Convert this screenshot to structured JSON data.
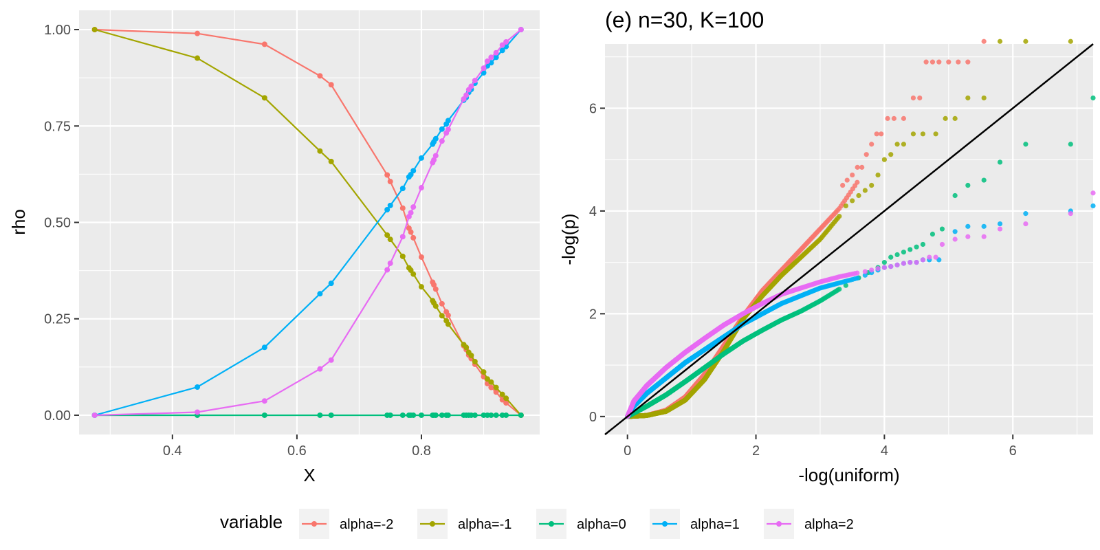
{
  "colors": {
    "alpha=-2": "#F8766D",
    "alpha=-1": "#A3A500",
    "alpha=0": "#00BF7D",
    "alpha=1": "#00B0F6",
    "alpha=2": "#E76BF3",
    "reference_line": "#000000"
  },
  "legend": {
    "title": "variable",
    "entries": [
      "alpha=-2",
      "alpha=-1",
      "alpha=0",
      "alpha=1",
      "alpha=2"
    ]
  },
  "chart_data": [
    {
      "type": "line",
      "title": "",
      "xlabel": "X",
      "ylabel": "rho",
      "xlim": [
        0.25,
        0.99
      ],
      "ylim": [
        -0.05,
        1.05
      ],
      "x_ticks": [
        0.4,
        0.6,
        0.8
      ],
      "x_tick_labels": [
        "0.4",
        "0.6",
        "0.8"
      ],
      "y_ticks": [
        0,
        0.25,
        0.5,
        0.75,
        1.0
      ],
      "y_tick_labels": [
        "0.00",
        "0.25",
        "0.50",
        "0.75",
        "1.00"
      ],
      "grid": true,
      "series": [
        {
          "name": "alpha=-2",
          "x": [
            0.275,
            0.44,
            0.548,
            0.637,
            0.655,
            0.745,
            0.75,
            0.77,
            0.78,
            0.783,
            0.787,
            0.8,
            0.818,
            0.82,
            0.823,
            0.833,
            0.84,
            0.843,
            0.868,
            0.872,
            0.876,
            0.88,
            0.886,
            0.9,
            0.906,
            0.912,
            0.92,
            0.93,
            0.936,
            0.96
          ],
          "y": [
            1.0,
            0.99,
            0.962,
            0.88,
            0.857,
            0.623,
            0.606,
            0.537,
            0.485,
            0.475,
            0.46,
            0.41,
            0.345,
            0.338,
            0.327,
            0.289,
            0.268,
            0.259,
            0.18,
            0.17,
            0.156,
            0.147,
            0.132,
            0.1,
            0.082,
            0.072,
            0.06,
            0.04,
            0.032,
            0.0
          ]
        },
        {
          "name": "alpha=-1",
          "x": [
            0.275,
            0.44,
            0.548,
            0.637,
            0.655,
            0.745,
            0.75,
            0.77,
            0.78,
            0.783,
            0.787,
            0.8,
            0.818,
            0.82,
            0.823,
            0.833,
            0.84,
            0.843,
            0.868,
            0.872,
            0.876,
            0.88,
            0.886,
            0.9,
            0.906,
            0.912,
            0.92,
            0.93,
            0.936,
            0.96
          ],
          "y": [
            1.0,
            0.926,
            0.823,
            0.685,
            0.658,
            0.467,
            0.456,
            0.412,
            0.382,
            0.376,
            0.366,
            0.333,
            0.297,
            0.291,
            0.283,
            0.258,
            0.245,
            0.236,
            0.183,
            0.176,
            0.163,
            0.155,
            0.139,
            0.112,
            0.094,
            0.086,
            0.072,
            0.054,
            0.044,
            0.0
          ]
        },
        {
          "name": "alpha=0",
          "x": [
            0.275,
            0.44,
            0.548,
            0.637,
            0.655,
            0.745,
            0.75,
            0.77,
            0.78,
            0.783,
            0.787,
            0.8,
            0.818,
            0.82,
            0.823,
            0.833,
            0.84,
            0.843,
            0.868,
            0.872,
            0.876,
            0.88,
            0.886,
            0.9,
            0.906,
            0.912,
            0.92,
            0.93,
            0.936,
            0.96
          ],
          "y": [
            0,
            0,
            0,
            0,
            0,
            0,
            0,
            0,
            0,
            0,
            0,
            0,
            0,
            0,
            0,
            0,
            0,
            0,
            0,
            0,
            0,
            0,
            0,
            0,
            0,
            0,
            0,
            0,
            0,
            0
          ]
        },
        {
          "name": "alpha=1",
          "x": [
            0.275,
            0.44,
            0.548,
            0.637,
            0.655,
            0.745,
            0.75,
            0.77,
            0.78,
            0.783,
            0.787,
            0.8,
            0.818,
            0.82,
            0.823,
            0.833,
            0.84,
            0.843,
            0.868,
            0.872,
            0.876,
            0.88,
            0.886,
            0.9,
            0.906,
            0.912,
            0.92,
            0.93,
            0.936,
            0.96
          ],
          "y": [
            0.0,
            0.073,
            0.176,
            0.315,
            0.342,
            0.533,
            0.544,
            0.588,
            0.618,
            0.624,
            0.634,
            0.667,
            0.703,
            0.709,
            0.717,
            0.742,
            0.755,
            0.764,
            0.817,
            0.824,
            0.837,
            0.845,
            0.861,
            0.888,
            0.906,
            0.914,
            0.928,
            0.946,
            0.956,
            1.0
          ]
        },
        {
          "name": "alpha=2",
          "x": [
            0.275,
            0.44,
            0.548,
            0.637,
            0.655,
            0.745,
            0.75,
            0.77,
            0.78,
            0.783,
            0.787,
            0.8,
            0.818,
            0.82,
            0.823,
            0.833,
            0.84,
            0.843,
            0.868,
            0.872,
            0.876,
            0.88,
            0.886,
            0.9,
            0.906,
            0.912,
            0.92,
            0.93,
            0.936,
            0.96
          ],
          "y": [
            0.0,
            0.008,
            0.037,
            0.12,
            0.143,
            0.377,
            0.394,
            0.463,
            0.515,
            0.525,
            0.54,
            0.59,
            0.655,
            0.662,
            0.673,
            0.711,
            0.732,
            0.741,
            0.82,
            0.83,
            0.844,
            0.853,
            0.868,
            0.9,
            0.918,
            0.928,
            0.94,
            0.96,
            0.968,
            1.0
          ]
        }
      ]
    },
    {
      "type": "scatter",
      "title": "(e) n=30, K=100",
      "xlabel": "-log(uniform)",
      "ylabel": "-log(p)",
      "xlim": [
        -0.35,
        7.25
      ],
      "ylim": [
        -0.35,
        7.25
      ],
      "x_ticks": [
        0,
        2,
        4,
        6
      ],
      "x_tick_labels": [
        "0",
        "2",
        "4",
        "6"
      ],
      "y_ticks": [
        0,
        2,
        4,
        6
      ],
      "y_tick_labels": [
        "0",
        "2",
        "4",
        "6"
      ],
      "grid": true,
      "reference_line": {
        "intercept": 0,
        "slope": 1
      },
      "n_points": 1000,
      "series": [
        {
          "name": "alpha=-2",
          "curve_x": [
            0,
            0.3,
            0.6,
            0.9,
            1.2,
            1.5,
            1.8,
            2.1,
            2.4,
            2.7,
            3.0,
            3.3,
            3.6
          ],
          "curve_y": [
            0,
            0.02,
            0.12,
            0.38,
            0.82,
            1.38,
            1.95,
            2.45,
            2.85,
            3.25,
            3.65,
            4.05,
            4.6
          ],
          "tail_x": [
            3.35,
            3.42,
            3.5,
            3.58,
            3.65,
            3.72,
            3.8,
            3.88,
            3.95,
            4.05,
            4.15,
            4.3,
            4.45,
            4.55,
            4.65,
            4.75,
            4.85,
            5.0,
            5.15,
            5.3,
            5.55
          ],
          "tail_y": [
            4.5,
            4.6,
            4.7,
            4.85,
            4.85,
            5.1,
            5.3,
            5.5,
            5.5,
            5.8,
            5.8,
            5.8,
            6.2,
            6.2,
            6.9,
            6.9,
            6.9,
            6.9,
            6.9,
            6.9,
            7.3
          ]
        },
        {
          "name": "alpha=-1",
          "curve_x": [
            0,
            0.3,
            0.6,
            0.9,
            1.2,
            1.5,
            1.8,
            2.1,
            2.4,
            2.7,
            3.0,
            3.3
          ],
          "curve_y": [
            0,
            0.02,
            0.1,
            0.32,
            0.72,
            1.28,
            1.9,
            2.35,
            2.75,
            3.1,
            3.45,
            3.9
          ],
          "tail_x": [
            3.4,
            3.5,
            3.6,
            3.7,
            3.8,
            3.9,
            4.0,
            4.1,
            4.2,
            4.3,
            4.45,
            4.6,
            4.8,
            4.95,
            5.1,
            5.3,
            5.55,
            5.8,
            6.2,
            6.9
          ],
          "tail_y": [
            4.1,
            4.2,
            4.3,
            4.4,
            4.5,
            4.7,
            5.0,
            5.1,
            5.3,
            5.3,
            5.5,
            5.5,
            5.5,
            5.8,
            5.8,
            6.2,
            6.2,
            7.3,
            7.3,
            7.3
          ]
        },
        {
          "name": "alpha=0",
          "curve_x": [
            0,
            0.3,
            0.6,
            0.9,
            1.2,
            1.5,
            1.8,
            2.1,
            2.4,
            2.7,
            3.0,
            3.3
          ],
          "curve_y": [
            0,
            0.2,
            0.42,
            0.68,
            0.95,
            1.22,
            1.47,
            1.68,
            1.88,
            2.05,
            2.25,
            2.48
          ],
          "tail_x": [
            3.4,
            3.6,
            3.75,
            3.9,
            4.0,
            4.1,
            4.2,
            4.3,
            4.4,
            4.5,
            4.6,
            4.75,
            4.9,
            5.1,
            5.3,
            5.55,
            5.8,
            6.2,
            6.9,
            7.25
          ],
          "tail_y": [
            2.55,
            2.7,
            2.8,
            2.9,
            3.0,
            3.1,
            3.15,
            3.2,
            3.25,
            3.3,
            3.35,
            3.55,
            3.65,
            4.3,
            4.5,
            4.6,
            4.95,
            5.3,
            5.3,
            6.2
          ]
        },
        {
          "name": "alpha=1",
          "curve_x": [
            0,
            0.1,
            0.3,
            0.6,
            0.9,
            1.2,
            1.5,
            1.8,
            2.1,
            2.4,
            2.7,
            3.0,
            3.3,
            3.6
          ],
          "curve_y": [
            0,
            0.2,
            0.45,
            0.75,
            1.05,
            1.3,
            1.55,
            1.8,
            2.0,
            2.2,
            2.35,
            2.5,
            2.6,
            2.7
          ],
          "tail_x": [
            3.7,
            3.8,
            3.9,
            4.0,
            4.1,
            4.2,
            4.3,
            4.4,
            4.5,
            4.6,
            4.7,
            4.85,
            5.1,
            5.3,
            5.55,
            5.8,
            6.2,
            6.9,
            7.25
          ],
          "tail_y": [
            2.75,
            2.8,
            2.85,
            2.9,
            2.92,
            2.95,
            2.98,
            3.0,
            3.0,
            3.05,
            3.05,
            3.05,
            3.6,
            3.7,
            3.7,
            3.75,
            3.95,
            4.0,
            4.1
          ]
        },
        {
          "name": "alpha=2",
          "curve_x": [
            0,
            0.1,
            0.3,
            0.6,
            0.9,
            1.2,
            1.5,
            1.8,
            2.1,
            2.4,
            2.7,
            3.0,
            3.3,
            3.6
          ],
          "curve_y": [
            0,
            0.3,
            0.6,
            0.95,
            1.25,
            1.52,
            1.78,
            2.0,
            2.2,
            2.38,
            2.5,
            2.62,
            2.72,
            2.8
          ],
          "tail_x": [
            3.7,
            3.8,
            3.9,
            4.0,
            4.1,
            4.2,
            4.3,
            4.4,
            4.5,
            4.6,
            4.7,
            4.8,
            4.9,
            5.1,
            5.3,
            5.55,
            5.8,
            6.2,
            6.9,
            7.25
          ],
          "tail_y": [
            2.82,
            2.85,
            2.88,
            2.9,
            2.92,
            2.95,
            2.98,
            3.0,
            3.0,
            3.05,
            3.1,
            3.1,
            3.35,
            3.45,
            3.5,
            3.5,
            3.65,
            3.75,
            3.95,
            4.35
          ]
        }
      ]
    }
  ]
}
